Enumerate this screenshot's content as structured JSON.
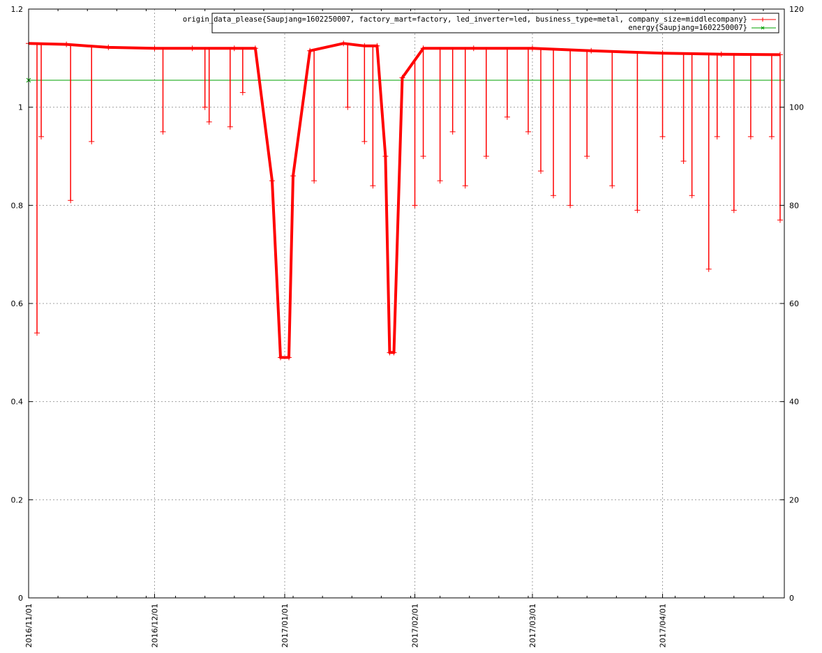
{
  "chart_data": {
    "type": "line",
    "title": "",
    "xlabel": "",
    "ylabel": "",
    "y2label": "",
    "xlim": [
      "2016-11-01",
      "2017-04-30"
    ],
    "ylim": [
      0,
      1.2
    ],
    "y2lim": [
      0,
      120
    ],
    "grid": true,
    "legend_position": "top-right",
    "x_ticks": [
      "2016/11/01",
      "2016/12/01",
      "2017/01/01",
      "2017/02/01",
      "2017/03/01",
      "2017/04/01"
    ],
    "y_ticks": [
      "0",
      "0.2",
      "0.4",
      "0.6",
      "0.8",
      "1",
      "1.2"
    ],
    "y2_ticks": [
      "0",
      "20",
      "40",
      "60",
      "80",
      "100",
      "120"
    ],
    "series": [
      {
        "name": "origin_data_please{Saupjang=1602250007, factory_mart=factory, led_inverter=led, business_type=metal, company_size=middlecompany}",
        "color": "#ff0000",
        "marker": "plus",
        "x": [
          "2016-11-01",
          "2016-11-10",
          "2016-11-20",
          "2016-12-01",
          "2016-12-10",
          "2016-12-20",
          "2016-12-25",
          "2016-12-29",
          "2016-12-31",
          "2017-01-02",
          "2017-01-03",
          "2017-01-07",
          "2017-01-15",
          "2017-01-20",
          "2017-01-23",
          "2017-01-25",
          "2017-01-26",
          "2017-01-27",
          "2017-01-29",
          "2017-02-03",
          "2017-02-15",
          "2017-03-01",
          "2017-03-15",
          "2017-04-01",
          "2017-04-15",
          "2017-04-29"
        ],
        "y": [
          1.13,
          1.128,
          1.122,
          1.12,
          1.12,
          1.12,
          1.12,
          0.85,
          0.49,
          0.49,
          0.86,
          1.115,
          1.13,
          1.125,
          1.125,
          0.9,
          0.5,
          0.5,
          1.06,
          1.12,
          1.12,
          1.12,
          1.115,
          1.11,
          1.108,
          1.107
        ]
      },
      {
        "name": "energy{Saupjang=1602250007}",
        "color": "#00a000",
        "marker": "cross",
        "axis": "y2",
        "x": [
          "2016-11-01",
          "2017-04-30"
        ],
        "y": [
          105.5,
          105.5
        ]
      }
    ],
    "drops": [
      [
        "2016-11-03",
        0.54
      ],
      [
        "2016-11-04",
        0.94
      ],
      [
        "2016-11-11",
        0.81
      ],
      [
        "2016-11-16",
        0.93
      ],
      [
        "2016-12-03",
        0.95
      ],
      [
        "2016-12-13",
        1.0
      ],
      [
        "2016-12-14",
        0.97
      ],
      [
        "2016-12-19",
        0.96
      ],
      [
        "2016-12-22",
        1.03
      ],
      [
        "2017-01-08",
        0.85
      ],
      [
        "2017-01-16",
        1.0
      ],
      [
        "2017-01-20",
        0.93
      ],
      [
        "2017-01-22",
        0.84
      ],
      [
        "2017-02-01",
        0.8
      ],
      [
        "2017-02-03",
        0.9
      ],
      [
        "2017-02-07",
        0.85
      ],
      [
        "2017-02-10",
        0.95
      ],
      [
        "2017-02-13",
        0.84
      ],
      [
        "2017-02-18",
        0.9
      ],
      [
        "2017-02-23",
        0.98
      ],
      [
        "2017-02-28",
        0.95
      ],
      [
        "2017-03-03",
        0.87
      ],
      [
        "2017-03-06",
        0.82
      ],
      [
        "2017-03-10",
        0.8
      ],
      [
        "2017-03-14",
        0.9
      ],
      [
        "2017-03-20",
        0.84
      ],
      [
        "2017-03-26",
        0.79
      ],
      [
        "2017-04-01",
        0.94
      ],
      [
        "2017-04-06",
        0.89
      ],
      [
        "2017-04-08",
        0.82
      ],
      [
        "2017-04-12",
        0.67
      ],
      [
        "2017-04-14",
        0.94
      ],
      [
        "2017-04-18",
        0.79
      ],
      [
        "2017-04-22",
        0.94
      ],
      [
        "2017-04-27",
        0.94
      ],
      [
        "2017-04-29",
        0.77
      ]
    ]
  }
}
